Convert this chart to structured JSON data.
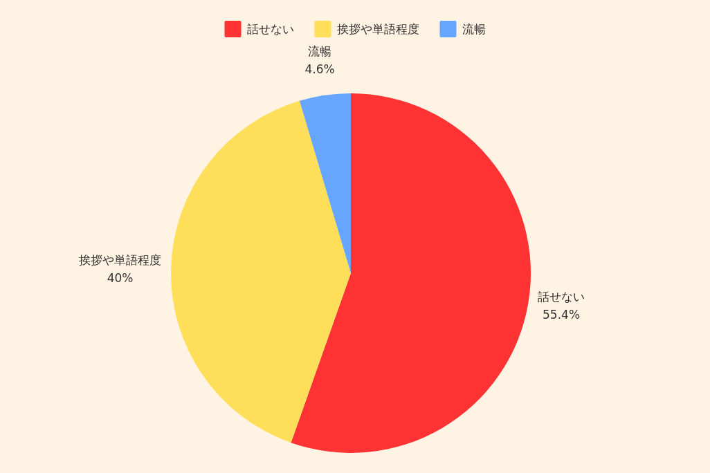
{
  "chart_data": {
    "type": "pie",
    "categories": [
      "話せない",
      "挨拶や単語程度",
      "流暢"
    ],
    "values": [
      55.4,
      40,
      4.6
    ],
    "colors": [
      "#ff3333",
      "#ffde59",
      "#66a6ff"
    ],
    "value_labels": [
      "55.4%",
      "40%",
      "4.6%"
    ],
    "legend": "top"
  }
}
